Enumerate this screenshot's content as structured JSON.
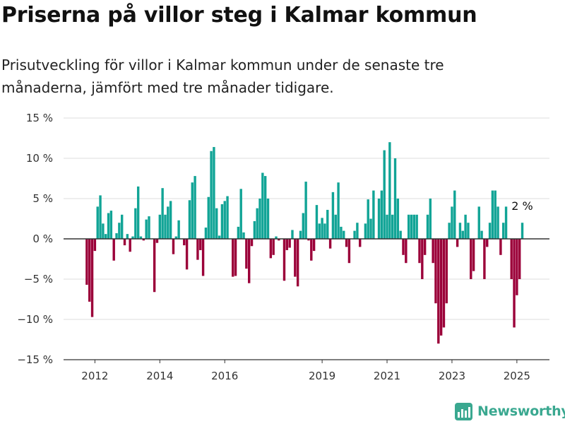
{
  "header": {
    "title": "Priserna på villor steg i Kalmar kommun",
    "subtitle": "Prisutveckling för villor i Kalmar kommun under de senaste tre månaderna, jämfört med tre månader tidigare."
  },
  "branding": {
    "name": "Newsworthy",
    "icon": "newsworthy-chart-logo-icon"
  },
  "colors": {
    "positive": "#11a496",
    "negative": "#9b0039",
    "axis": "#333333",
    "grid": "#dddddd",
    "brand": "#3aa890"
  },
  "chart_data": {
    "type": "bar",
    "title": "",
    "xlabel": "",
    "ylabel": "",
    "ylim": [
      -15,
      15
    ],
    "ytick_values": [
      15,
      10,
      5,
      0,
      -5,
      -10,
      -15
    ],
    "ytick_labels": [
      "15 %",
      "10 %",
      "5 %",
      "0 %",
      "−5 %",
      "−10 %",
      "−15 %"
    ],
    "xtick_labels": [
      {
        "label": "2012",
        "index": 3
      },
      {
        "label": "2014",
        "index": 27
      },
      {
        "label": "2016",
        "index": 51
      },
      {
        "label": "2019",
        "index": 87
      },
      {
        "label": "2021",
        "index": 111
      },
      {
        "label": "2023",
        "index": 135
      },
      {
        "label": "2025",
        "index": 159
      }
    ],
    "period": "monthly, 2011-10 to 2025-05",
    "last_value_label": "2 %",
    "values": [
      -5.7,
      -7.8,
      -9.7,
      -1.5,
      4,
      5.4,
      1.9,
      0.6,
      3.2,
      3.5,
      -2.7,
      0.7,
      2,
      3,
      -0.8,
      0.6,
      -1.6,
      0.3,
      3.8,
      6.5,
      0.3,
      -0.2,
      2.4,
      2.8,
      0,
      -6.6,
      -0.5,
      3,
      6.3,
      3,
      4,
      4.7,
      -1.9,
      0.3,
      2.3,
      0,
      -0.8,
      -3.8,
      4.8,
      7,
      7.8,
      -2.6,
      -1.4,
      -4.6,
      1.4,
      5.2,
      10.9,
      11.4,
      3.8,
      0.4,
      4.3,
      4.7,
      5.3,
      0,
      -4.7,
      -4.6,
      1.5,
      6.2,
      0.8,
      -3.7,
      -5.5,
      -0.9,
      2.2,
      3.8,
      5,
      8.2,
      7.8,
      5,
      -2.4,
      -2,
      0.3,
      -0.2,
      0,
      -5.2,
      -1.4,
      -1.1,
      1.1,
      -4.7,
      -5.9,
      1,
      3.2,
      7.1,
      -0.2,
      -2.7,
      -1.5,
      4.2,
      1.9,
      2.6,
      1.9,
      3.6,
      -1.2,
      5.8,
      3,
      7,
      1.5,
      1,
      -1,
      -3,
      0,
      1,
      2,
      -1,
      0,
      1.9,
      4.9,
      2.5,
      6,
      0,
      5,
      6,
      11,
      3,
      12,
      3,
      10,
      5,
      1,
      -2,
      -3,
      3,
      3,
      3,
      3,
      -3,
      -5,
      -2,
      3,
      5,
      -3,
      -8,
      -13,
      -12,
      -11,
      -8,
      2,
      4,
      6,
      -1,
      2,
      1,
      3,
      2,
      -5,
      -4,
      0,
      4,
      1,
      -5,
      -1,
      2,
      6,
      6,
      4,
      -2,
      2,
      4,
      0,
      -5,
      -11,
      -7,
      -5,
      2
    ]
  }
}
